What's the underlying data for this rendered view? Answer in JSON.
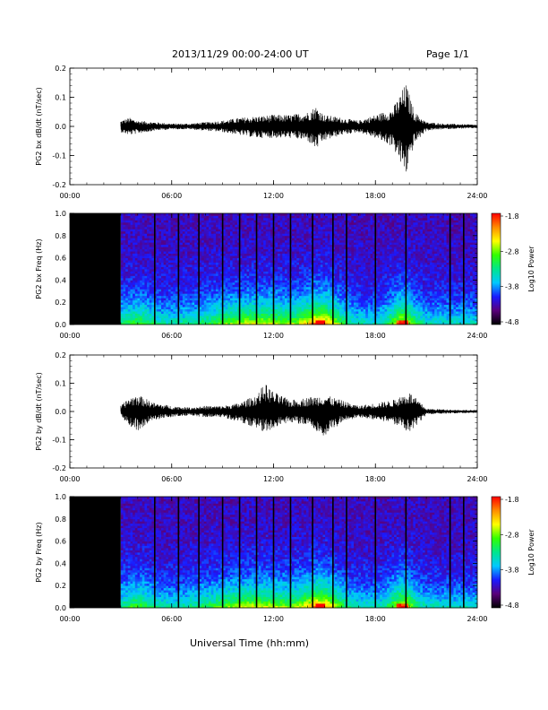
{
  "header": {
    "date_range": "2013/11/29  00:00-24:00 UT",
    "page": "Page 1/1"
  },
  "footer": {
    "xlabel": "Universal Time (hh:mm)"
  },
  "colors": {
    "trace": "#000000",
    "colormap": [
      "#000000",
      "#5a007a",
      "#1a1aff",
      "#00c8ff",
      "#00e68c",
      "#32ff00",
      "#ffff00",
      "#ff8c00",
      "#ff0000"
    ]
  },
  "chart_data": [
    {
      "type": "line",
      "ylabel": "PG2 bx dB/dt (nT/sec)",
      "xlim": [
        0,
        24
      ],
      "ylim": [
        -0.2,
        0.2
      ],
      "xticks": [
        "00:00",
        "06:00",
        "12:00",
        "18:00",
        "24:00"
      ],
      "yticks": [
        "0.2",
        "0.1",
        "0.0",
        "-0.1",
        "-0.2"
      ],
      "data_start_hour": 3.0,
      "envelope": {
        "x": [
          3,
          3.5,
          4,
          5,
          6,
          7,
          8,
          9,
          10,
          11,
          12,
          13,
          14,
          14.5,
          15,
          16,
          17,
          18,
          19,
          19.8,
          20.3,
          21,
          22,
          23,
          24
        ],
        "max": [
          0.02,
          0.03,
          0.02,
          0.015,
          0.01,
          0.01,
          0.015,
          0.02,
          0.03,
          0.035,
          0.04,
          0.04,
          0.05,
          0.07,
          0.04,
          0.03,
          0.02,
          0.04,
          0.06,
          0.15,
          0.05,
          0.015,
          0.01,
          0.008,
          0.006
        ],
        "min": [
          -0.02,
          -0.03,
          -0.025,
          -0.015,
          -0.01,
          -0.01,
          -0.015,
          -0.02,
          -0.03,
          -0.04,
          -0.04,
          -0.04,
          -0.05,
          -0.08,
          -0.05,
          -0.03,
          -0.02,
          -0.04,
          -0.07,
          -0.17,
          -0.06,
          -0.015,
          -0.01,
          -0.008,
          -0.006
        ]
      }
    },
    {
      "type": "heatmap",
      "ylabel": "PG2 bx Freq (Hz)",
      "colorbar_label": "Log10 Power",
      "colorbar_ticks": [
        "-1.8",
        "-2.8",
        "-3.8",
        "-4.8"
      ],
      "zlim": [
        -4.8,
        -1.8
      ],
      "xlim": [
        0,
        24
      ],
      "ylim": [
        0.0,
        1.0
      ],
      "xticks": [
        "00:00",
        "06:00",
        "12:00",
        "18:00",
        "24:00"
      ],
      "yticks": [
        "1.0",
        "0.8",
        "0.6",
        "0.4",
        "0.2",
        "0.0"
      ],
      "data_start_hour": 3.0,
      "gap_lines_hour": [
        5.0,
        6.4,
        7.6,
        9.0,
        10.0,
        11.0,
        12.0,
        13.0,
        14.3,
        15.5,
        16.3,
        18.0,
        19.8,
        22.4,
        23.2
      ]
    },
    {
      "type": "line",
      "ylabel": "PG2 by dB/dt (nT/sec)",
      "xlim": [
        0,
        24
      ],
      "ylim": [
        -0.2,
        0.2
      ],
      "xticks": [
        "00:00",
        "06:00",
        "12:00",
        "18:00",
        "24:00"
      ],
      "yticks": [
        "0.2",
        "0.1",
        "0.0",
        "-0.1",
        "-0.2"
      ],
      "data_start_hour": 3.0,
      "envelope": {
        "x": [
          3,
          3.5,
          4,
          5,
          6,
          7,
          8,
          9,
          10,
          11,
          11.5,
          12,
          13,
          14,
          15,
          16,
          17,
          18,
          19,
          20,
          20.5,
          21,
          22,
          23,
          24
        ],
        "max": [
          0.02,
          0.05,
          0.06,
          0.03,
          0.02,
          0.015,
          0.02,
          0.02,
          0.03,
          0.06,
          0.1,
          0.07,
          0.04,
          0.05,
          0.06,
          0.04,
          0.02,
          0.03,
          0.04,
          0.07,
          0.04,
          0.01,
          0.008,
          0.006,
          0.005
        ],
        "min": [
          -0.02,
          -0.05,
          -0.07,
          -0.03,
          -0.02,
          -0.015,
          -0.02,
          -0.02,
          -0.04,
          -0.06,
          -0.08,
          -0.06,
          -0.04,
          -0.05,
          -0.09,
          -0.04,
          -0.02,
          -0.03,
          -0.04,
          -0.08,
          -0.05,
          -0.01,
          -0.008,
          -0.006,
          -0.005
        ]
      }
    },
    {
      "type": "heatmap",
      "ylabel": "PG2 by Freq (Hz)",
      "colorbar_label": "Log10 Power",
      "colorbar_ticks": [
        "-1.8",
        "-2.8",
        "-3.8",
        "-4.8"
      ],
      "zlim": [
        -4.8,
        -1.8
      ],
      "xlim": [
        0,
        24
      ],
      "ylim": [
        0.0,
        1.0
      ],
      "xticks": [
        "00:00",
        "06:00",
        "12:00",
        "18:00",
        "24:00"
      ],
      "yticks": [
        "1.0",
        "0.8",
        "0.6",
        "0.4",
        "0.2",
        "0.0"
      ],
      "data_start_hour": 3.0,
      "gap_lines_hour": [
        5.0,
        6.4,
        7.6,
        9.0,
        10.0,
        11.0,
        12.0,
        13.0,
        14.3,
        15.5,
        16.3,
        18.0,
        19.8,
        22.4,
        23.2
      ]
    }
  ]
}
